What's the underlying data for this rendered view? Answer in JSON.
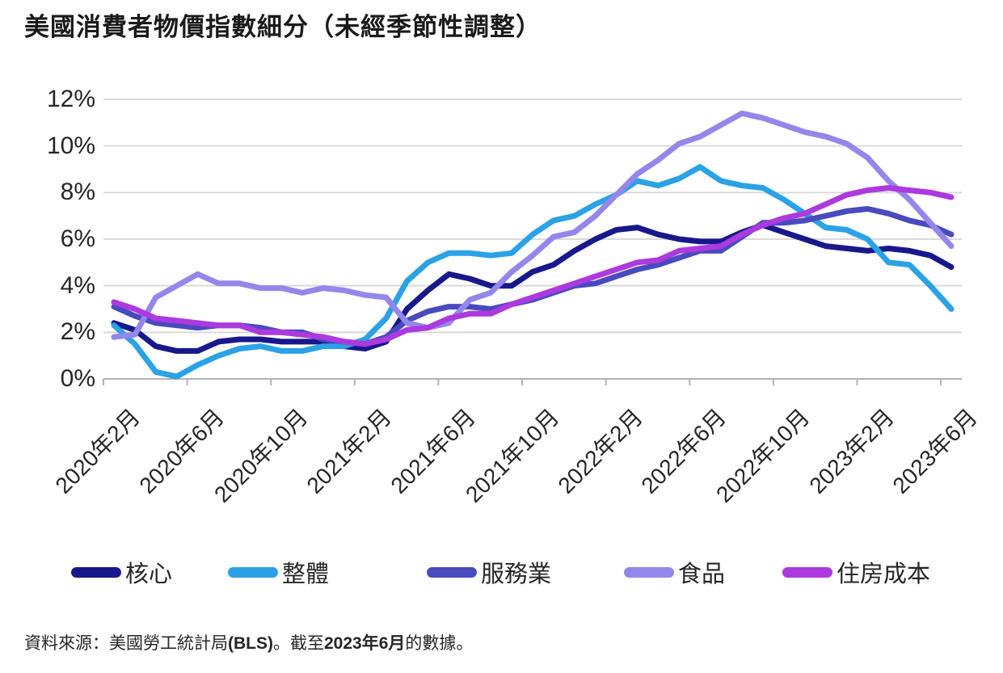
{
  "chart_data": {
    "type": "line",
    "title": "美國消費者物價指數細分（未經季節性調整）",
    "xlabel": "",
    "ylabel": "",
    "ylim": [
      0,
      12
    ],
    "y_step": 2,
    "y_tick_labels": [
      "0%",
      "2%",
      "4%",
      "6%",
      "8%",
      "10%",
      "12%"
    ],
    "x_tick_labels": [
      "2020年2月",
      "2020年6月",
      "2020年10月",
      "2021年2月",
      "2021年6月",
      "2021年10月",
      "2022年2月",
      "2022年6月",
      "2022年10月",
      "2023年2月",
      "2023年6月"
    ],
    "x_tick_every": 4,
    "n_points": 41,
    "x_start": "2020年2月",
    "x_end": "2023年6月",
    "grid": true,
    "grid_color": "#d9d9d9",
    "axis_color": "#b3b3b3",
    "legend_position": "bottom",
    "series": [
      {
        "id": "core",
        "name": "核心",
        "color": "#18188c",
        "values": [
          2.4,
          2.1,
          1.4,
          1.2,
          1.2,
          1.6,
          1.7,
          1.7,
          1.6,
          1.6,
          1.6,
          1.4,
          1.3,
          1.6,
          3.0,
          3.8,
          4.5,
          4.3,
          4.0,
          4.0,
          4.6,
          4.9,
          5.5,
          6.0,
          6.4,
          6.5,
          6.2,
          6.0,
          5.9,
          5.9,
          6.3,
          6.6,
          6.3,
          6.0,
          5.7,
          5.6,
          5.5,
          5.6,
          5.5,
          5.3,
          4.8
        ]
      },
      {
        "id": "headline",
        "name": "整體",
        "color": "#2ba2e5",
        "values": [
          2.3,
          1.5,
          0.3,
          0.1,
          0.6,
          1.0,
          1.3,
          1.4,
          1.2,
          1.2,
          1.4,
          1.4,
          1.7,
          2.6,
          4.2,
          5.0,
          5.4,
          5.4,
          5.3,
          5.4,
          6.2,
          6.8,
          7.0,
          7.5,
          7.9,
          8.5,
          8.3,
          8.6,
          9.1,
          8.5,
          8.3,
          8.2,
          7.7,
          7.1,
          6.5,
          6.4,
          6.0,
          5.0,
          4.9,
          4.0,
          3.0
        ]
      },
      {
        "id": "services",
        "name": "服務業",
        "color": "#4a4abf",
        "values": [
          3.1,
          2.7,
          2.4,
          2.3,
          2.2,
          2.3,
          2.3,
          2.2,
          2.0,
          2.0,
          1.7,
          1.6,
          1.5,
          1.8,
          2.5,
          2.9,
          3.1,
          3.1,
          3.0,
          3.2,
          3.4,
          3.7,
          4.0,
          4.1,
          4.4,
          4.7,
          4.9,
          5.2,
          5.5,
          5.5,
          6.1,
          6.7,
          6.7,
          6.8,
          7.0,
          7.2,
          7.3,
          7.1,
          6.8,
          6.6,
          6.2
        ]
      },
      {
        "id": "food",
        "name": "食品",
        "color": "#9487eb",
        "values": [
          1.8,
          1.9,
          3.5,
          4.0,
          4.5,
          4.1,
          4.1,
          3.9,
          3.9,
          3.7,
          3.9,
          3.8,
          3.6,
          3.5,
          2.4,
          2.2,
          2.4,
          3.4,
          3.7,
          4.6,
          5.3,
          6.1,
          6.3,
          7.0,
          7.9,
          8.8,
          9.4,
          10.1,
          10.4,
          10.9,
          11.4,
          11.2,
          10.9,
          10.6,
          10.4,
          10.1,
          9.5,
          8.5,
          7.7,
          6.7,
          5.7
        ]
      },
      {
        "id": "housing",
        "name": "住房成本",
        "color": "#ac3adf",
        "values": [
          3.3,
          3.0,
          2.6,
          2.5,
          2.4,
          2.3,
          2.3,
          2.0,
          2.0,
          1.9,
          1.8,
          1.6,
          1.5,
          1.7,
          2.1,
          2.2,
          2.6,
          2.8,
          2.8,
          3.2,
          3.5,
          3.8,
          4.1,
          4.4,
          4.7,
          5.0,
          5.1,
          5.5,
          5.6,
          5.7,
          6.2,
          6.6,
          6.9,
          7.1,
          7.5,
          7.9,
          8.1,
          8.2,
          8.1,
          8.0,
          7.8
        ]
      }
    ]
  },
  "source_note": {
    "segments": [
      {
        "text": "資料來源：美國勞工統計局",
        "bold": false
      },
      {
        "text": "(BLS)",
        "bold": true
      },
      {
        "text": "。截至",
        "bold": false
      },
      {
        "text": "2023年6月",
        "bold": true
      },
      {
        "text": "的數據。",
        "bold": false
      }
    ]
  }
}
